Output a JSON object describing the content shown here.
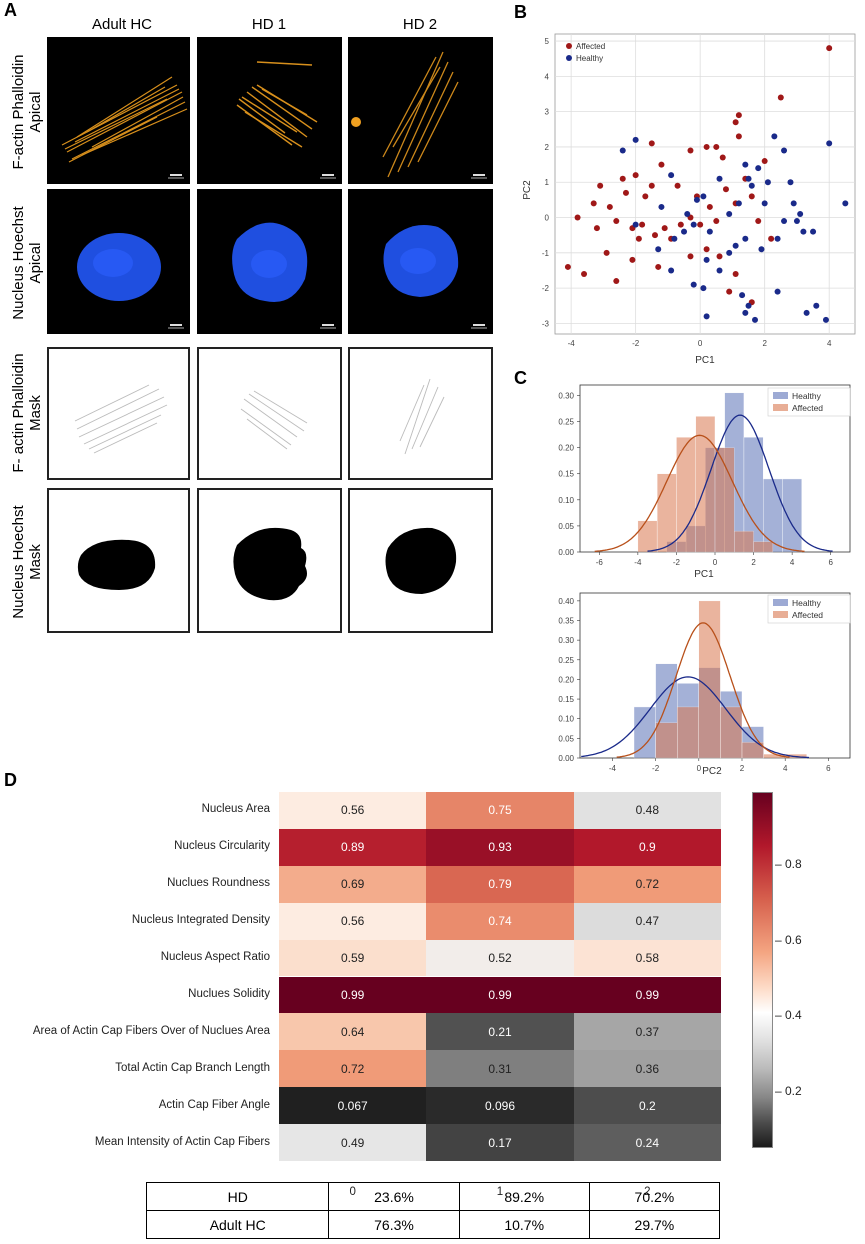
{
  "panels": {
    "a": "A",
    "b": "B",
    "c": "C",
    "d": "D"
  },
  "panel_a": {
    "columns": [
      "Adult HC",
      "HD 1",
      "HD 2"
    ],
    "rows": [
      [
        "F-actin Phalloidin",
        "Apical"
      ],
      [
        "Nucleus Hoechst",
        "Apical"
      ],
      [
        "F- actin Phalloidin",
        "Mask"
      ],
      [
        "Nucleus Hoechst",
        "Mask"
      ]
    ],
    "colors": {
      "actin": "#f0a020",
      "nucleus": "#1f4fe0",
      "mask": "#000000"
    }
  },
  "chart_data": [
    {
      "id": "B",
      "type": "scatter",
      "xlabel": "PC1",
      "ylabel": "PC2",
      "xlim": [
        -4.5,
        4.8
      ],
      "ylim": [
        -3.3,
        5.2
      ],
      "xticks": [
        -4,
        -2,
        0,
        2,
        4
      ],
      "yticks": [
        -3,
        -2,
        -1,
        0,
        1,
        2,
        3,
        4,
        5
      ],
      "grid": true,
      "legend": "top-left",
      "series": [
        {
          "name": "Affected",
          "color": "#a01818",
          "points": [
            [
              4,
              4.8
            ],
            [
              2.5,
              3.4
            ],
            [
              1.2,
              2.9
            ],
            [
              1.1,
              2.7
            ],
            [
              1.2,
              2.3
            ],
            [
              0.5,
              2.0
            ],
            [
              0.2,
              2.0
            ],
            [
              -0.3,
              1.9
            ],
            [
              -1.5,
              2.1
            ],
            [
              -1.2,
              1.5
            ],
            [
              -2,
              1.2
            ],
            [
              -2.4,
              1.1
            ],
            [
              -3.1,
              0.9
            ],
            [
              -1.5,
              0.9
            ],
            [
              -1.7,
              0.6
            ],
            [
              -2.3,
              0.7
            ],
            [
              -2.8,
              0.3
            ],
            [
              -3.3,
              0.4
            ],
            [
              -3.8,
              0
            ],
            [
              -3.2,
              -0.3
            ],
            [
              -2.6,
              -0.1
            ],
            [
              -2.1,
              -0.3
            ],
            [
              -1.8,
              -0.2
            ],
            [
              -1.4,
              -0.5
            ],
            [
              -1.1,
              -0.3
            ],
            [
              -0.9,
              -0.6
            ],
            [
              -0.6,
              -0.2
            ],
            [
              -0.3,
              0
            ],
            [
              0,
              -0.2
            ],
            [
              0.3,
              0.3
            ],
            [
              0.5,
              -0.1
            ],
            [
              0.8,
              0.8
            ],
            [
              1.1,
              0.4
            ],
            [
              1.4,
              1.1
            ],
            [
              1.6,
              0.6
            ],
            [
              1.8,
              -0.1
            ],
            [
              2.0,
              1.6
            ],
            [
              2.2,
              -0.6
            ],
            [
              0.6,
              -1.1
            ],
            [
              0.2,
              -0.9
            ],
            [
              -0.3,
              -1.1
            ],
            [
              -1.3,
              -1.4
            ],
            [
              -2.1,
              -1.2
            ],
            [
              -2.6,
              -1.8
            ],
            [
              -3.6,
              -1.6
            ],
            [
              -4.1,
              -1.4
            ],
            [
              1.1,
              -1.6
            ],
            [
              0.9,
              -2.1
            ],
            [
              1.6,
              -2.4
            ],
            [
              -0.7,
              0.9
            ],
            [
              -0.1,
              0.6
            ],
            [
              0.7,
              1.7
            ],
            [
              -1.9,
              -0.6
            ],
            [
              -2.9,
              -1.0
            ]
          ]
        },
        {
          "name": "Healthy",
          "color": "#1a2a8a",
          "points": [
            [
              4,
              2.1
            ],
            [
              4.5,
              0.4
            ],
            [
              3.9,
              -2.9
            ],
            [
              3.6,
              -2.5
            ],
            [
              3.3,
              -2.7
            ],
            [
              2.4,
              -2.1
            ],
            [
              1.7,
              -2.9
            ],
            [
              1.4,
              -2.7
            ],
            [
              1.5,
              -2.5
            ],
            [
              1.3,
              -2.2
            ],
            [
              0.2,
              -2.8
            ],
            [
              0.1,
              -2.0
            ],
            [
              -0.9,
              -1.5
            ],
            [
              -0.2,
              -1.9
            ],
            [
              0.2,
              -1.2
            ],
            [
              0.6,
              -1.5
            ],
            [
              0.9,
              -1.0
            ],
            [
              1.1,
              -0.8
            ],
            [
              1.4,
              -0.6
            ],
            [
              1.9,
              -0.9
            ],
            [
              2.4,
              -0.6
            ],
            [
              2.6,
              -0.1
            ],
            [
              2.9,
              0.4
            ],
            [
              3.1,
              0.1
            ],
            [
              3.2,
              -0.4
            ],
            [
              2.8,
              1.0
            ],
            [
              3.5,
              -0.4
            ],
            [
              2.1,
              1.0
            ],
            [
              2.0,
              0.4
            ],
            [
              1.6,
              0.9
            ],
            [
              1.5,
              1.1
            ],
            [
              1.4,
              1.5
            ],
            [
              2.3,
              2.3
            ],
            [
              0.6,
              1.1
            ],
            [
              0.1,
              0.6
            ],
            [
              -0.1,
              0.5
            ],
            [
              -0.2,
              -0.2
            ],
            [
              -0.5,
              -0.4
            ],
            [
              -0.8,
              -0.6
            ],
            [
              -1.3,
              -0.9
            ],
            [
              -2.0,
              -0.2
            ],
            [
              -2.4,
              1.9
            ],
            [
              -2.0,
              2.2
            ],
            [
              -0.9,
              1.2
            ],
            [
              -1.2,
              0.3
            ],
            [
              -0.4,
              0.1
            ],
            [
              0.3,
              -0.4
            ],
            [
              0.9,
              0.1
            ],
            [
              1.2,
              0.4
            ],
            [
              1.8,
              1.4
            ],
            [
              2.6,
              1.9
            ],
            [
              3.0,
              -0.1
            ]
          ]
        }
      ]
    },
    {
      "id": "C-top",
      "type": "histogram",
      "xlabel": "PC1",
      "xlim": [
        -7,
        7
      ],
      "ylim": [
        0,
        0.32
      ],
      "xticks": [
        -6,
        -4,
        -2,
        0,
        2,
        4,
        6
      ],
      "yticks": [
        0.0,
        0.05,
        0.1,
        0.15,
        0.2,
        0.25,
        0.3
      ],
      "legend": "top-right",
      "series": [
        {
          "name": "Healthy",
          "color": "#5b72b8",
          "bins": [
            [
              -2.5,
              -1.5,
              0.02
            ],
            [
              -1.5,
              -0.5,
              0.05
            ],
            [
              -0.5,
              0.5,
              0.2
            ],
            [
              0.5,
              1.5,
              0.305
            ],
            [
              1.5,
              2.5,
              0.22
            ],
            [
              2.5,
              3.5,
              0.14
            ],
            [
              3.5,
              4.5,
              0.14
            ]
          ],
          "kde_mu": 1.3,
          "kde_sigma": 1.5
        },
        {
          "name": "Affected",
          "color": "#d97850",
          "bins": [
            [
              -4,
              -3,
              0.06
            ],
            [
              -3,
              -2,
              0.15
            ],
            [
              -2,
              -1,
              0.22
            ],
            [
              -1,
              0,
              0.26
            ],
            [
              0,
              1,
              0.2
            ],
            [
              1,
              2,
              0.04
            ],
            [
              2,
              3,
              0.02
            ]
          ],
          "kde_mu": -0.8,
          "kde_sigma": 1.7
        }
      ]
    },
    {
      "id": "C-bottom",
      "type": "histogram",
      "xlabel": "PC2",
      "xlim": [
        -5.5,
        7
      ],
      "ylim": [
        0,
        0.42
      ],
      "xticks": [
        -4,
        -2,
        0,
        2,
        4,
        6
      ],
      "yticks": [
        0.0,
        0.05,
        0.1,
        0.15,
        0.2,
        0.25,
        0.3,
        0.35,
        0.4
      ],
      "legend": "top-right",
      "series": [
        {
          "name": "Healthy",
          "color": "#5b72b8",
          "bins": [
            [
              -3,
              -2,
              0.13
            ],
            [
              -2,
              -1,
              0.24
            ],
            [
              -1,
              0,
              0.19
            ],
            [
              0,
              1,
              0.23
            ],
            [
              1,
              2,
              0.17
            ],
            [
              2,
              3,
              0.08
            ]
          ],
          "kde_mu": -0.5,
          "kde_sigma": 1.75
        },
        {
          "name": "Affected",
          "color": "#d97850",
          "bins": [
            [
              -2,
              -1,
              0.09
            ],
            [
              -1,
              0,
              0.13
            ],
            [
              0,
              1,
              0.4
            ],
            [
              1,
              2,
              0.13
            ],
            [
              2,
              3,
              0.04
            ],
            [
              3,
              4,
              0.01
            ],
            [
              4,
              5,
              0.01
            ]
          ],
          "kde_mu": 0.2,
          "kde_sigma": 1.25
        }
      ]
    },
    {
      "id": "D",
      "type": "heatmap",
      "rows": [
        "Nucleus Area",
        "Nucleus Circularity",
        "Nuclues Roundness",
        "Nucleus Integrated Density",
        "Nucleus Aspect Ratio",
        "Nuclues Solidity",
        "Area of Actin Cap Fibers Over of Nuclues Area",
        "Total Actin Cap Branch Length",
        "Actin Cap Fiber Angle",
        "Mean Intensity of Actin Cap Fibers"
      ],
      "columns": [
        "0",
        "1",
        "2"
      ],
      "values": [
        [
          0.56,
          0.75,
          0.48
        ],
        [
          0.89,
          0.93,
          0.9
        ],
        [
          0.69,
          0.79,
          0.72
        ],
        [
          0.56,
          0.74,
          0.47
        ],
        [
          0.59,
          0.52,
          0.58
        ],
        [
          0.99,
          0.99,
          0.99
        ],
        [
          0.64,
          0.21,
          0.37
        ],
        [
          0.72,
          0.31,
          0.36
        ],
        [
          0.067,
          0.096,
          0.2
        ],
        [
          0.49,
          0.17,
          0.24
        ]
      ],
      "labels": [
        [
          "0.56",
          "0.75",
          "0.48"
        ],
        [
          "0.89",
          "0.93",
          "0.9"
        ],
        [
          "0.69",
          "0.79",
          "0.72"
        ],
        [
          "0.56",
          "0.74",
          "0.47"
        ],
        [
          "0.59",
          "0.52",
          "0.58"
        ],
        [
          "0.99",
          "0.99",
          "0.99"
        ],
        [
          "0.64",
          "0.21",
          "0.37"
        ],
        [
          "0.72",
          "0.31",
          "0.36"
        ],
        [
          "0.067",
          "0.096",
          "0.2"
        ],
        [
          "0.49",
          "0.17",
          "0.24"
        ]
      ],
      "colorbar": {
        "min": 0.05,
        "max": 0.99,
        "ticks": [
          "0.8",
          "0.6",
          "0.4",
          "0.2"
        ],
        "tick_values": [
          0.8,
          0.6,
          0.4,
          0.2
        ]
      }
    }
  ],
  "summary_table": {
    "rows": [
      {
        "label": "HD",
        "cells": [
          "23.6%",
          "89.2%",
          "70.2%"
        ]
      },
      {
        "label": "Adult HC",
        "cells": [
          "76.3%",
          "10.7%",
          "29.7%"
        ]
      }
    ]
  }
}
